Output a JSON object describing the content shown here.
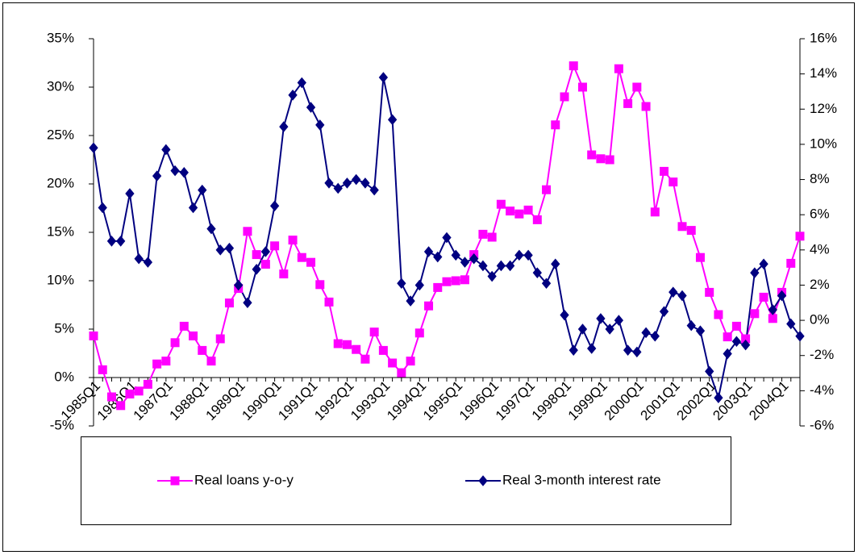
{
  "chart_data": {
    "type": "line",
    "categories": [
      "1985Q1",
      null,
      null,
      null,
      "1986Q1",
      null,
      null,
      null,
      "1987Q1",
      null,
      null,
      null,
      "1988Q1",
      null,
      null,
      null,
      "1989Q1",
      null,
      null,
      null,
      "1990Q1",
      null,
      null,
      null,
      "1991Q1",
      null,
      null,
      null,
      "1992Q1",
      null,
      null,
      null,
      "1993Q1",
      null,
      null,
      null,
      "1994Q1",
      null,
      null,
      null,
      "1995Q1",
      null,
      null,
      null,
      "1996Q1",
      null,
      null,
      null,
      "1997Q1",
      null,
      null,
      null,
      "1998Q1",
      null,
      null,
      null,
      "1999Q1",
      null,
      null,
      null,
      "2000Q1",
      null,
      null,
      null,
      "2001Q1",
      null,
      null,
      null,
      "2002Q1",
      null,
      null,
      null,
      "2003Q1",
      null,
      null,
      null,
      "2004Q1",
      null,
      null
    ],
    "series": [
      {
        "name": "Real loans y-o-y",
        "color": "#ff00ff",
        "marker": "square",
        "values": [
          4.3,
          0.8,
          -2.0,
          -2.9,
          -1.7,
          -1.4,
          -0.7,
          1.4,
          1.7,
          3.6,
          5.3,
          4.3,
          2.8,
          1.7,
          4.0,
          7.7,
          9.2,
          15.1,
          12.7,
          11.7,
          13.6,
          10.7,
          14.2,
          12.4,
          11.9,
          9.6,
          7.8,
          3.5,
          3.4,
          2.9,
          1.9,
          4.7,
          2.8,
          1.5,
          0.5,
          1.7,
          4.6,
          7.4,
          9.3,
          9.9,
          10.0,
          10.1,
          12.7,
          14.8,
          14.5,
          17.9,
          17.2,
          16.9,
          17.3,
          16.3,
          19.4,
          26.1,
          29.0,
          32.2,
          30.0,
          23.0,
          22.6,
          22.5,
          31.9,
          28.3,
          30.0,
          28.0,
          17.1,
          21.3,
          20.2,
          15.6,
          15.2,
          12.4,
          8.8,
          6.5,
          4.2,
          5.3,
          4.0,
          6.6,
          8.3,
          6.1,
          8.8,
          11.8,
          14.6
        ]
      },
      {
        "name": "Real 3-month interest rate",
        "color": "#000080",
        "marker": "diamond",
        "axis": "y2",
        "values": [
          9.8,
          6.4,
          4.5,
          4.5,
          7.2,
          3.5,
          3.3,
          8.2,
          9.7,
          8.5,
          8.4,
          6.4,
          7.4,
          5.2,
          4.0,
          4.1,
          2.0,
          1.0,
          2.9,
          3.9,
          6.5,
          11.0,
          12.8,
          13.5,
          12.1,
          11.1,
          7.8,
          7.5,
          7.8,
          8.0,
          7.8,
          7.4,
          13.8,
          11.4,
          2.1,
          1.1,
          2.0,
          3.9,
          3.6,
          4.7,
          3.7,
          3.3,
          3.5,
          3.1,
          2.5,
          3.1,
          3.1,
          3.7,
          3.7,
          2.7,
          2.1,
          3.2,
          0.3,
          -1.7,
          -0.5,
          -1.6,
          0.1,
          -0.5,
          0.0,
          -1.7,
          -1.8,
          -0.7,
          -0.9,
          0.5,
          1.6,
          1.4,
          -0.3,
          -0.6,
          -2.9,
          -4.4,
          -1.9,
          -1.2,
          -1.4,
          2.7,
          3.2,
          0.6,
          1.4,
          -0.2,
          -0.9
        ]
      }
    ],
    "ylim": [
      -5,
      35
    ],
    "yticks": [
      {
        "value": -5,
        "label": "-5%"
      },
      {
        "value": 0,
        "label": "0%"
      },
      {
        "value": 5,
        "label": "5%"
      },
      {
        "value": 10,
        "label": "10%"
      },
      {
        "value": 15,
        "label": "15%"
      },
      {
        "value": 20,
        "label": "20%"
      },
      {
        "value": 25,
        "label": "25%"
      },
      {
        "value": 30,
        "label": "30%"
      },
      {
        "value": 35,
        "label": "35%"
      }
    ],
    "y2lim": [
      -6,
      16
    ],
    "y2ticks": [
      {
        "value": -6,
        "label": "-6%"
      },
      {
        "value": -4,
        "label": "-4%"
      },
      {
        "value": -2,
        "label": "-2%"
      },
      {
        "value": 0,
        "label": "0%"
      },
      {
        "value": 2,
        "label": "2%"
      },
      {
        "value": 4,
        "label": "4%"
      },
      {
        "value": 6,
        "label": "6%"
      },
      {
        "value": 8,
        "label": "8%"
      },
      {
        "value": 10,
        "label": "10%"
      },
      {
        "value": 12,
        "label": "12%"
      },
      {
        "value": 14,
        "label": "14%"
      },
      {
        "value": 16,
        "label": "16%"
      }
    ],
    "grid": false,
    "legend": "bottom"
  }
}
